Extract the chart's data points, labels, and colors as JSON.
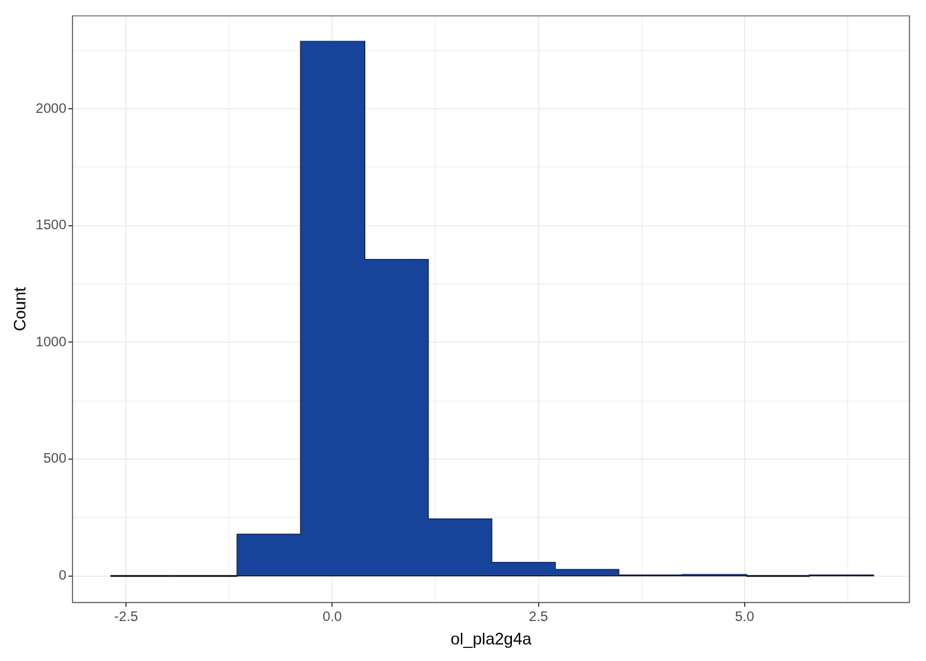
{
  "chart_data": {
    "type": "histogram",
    "xlabel": "ol_pla2g4a",
    "ylabel": "Count",
    "color": "#17439a",
    "bins": [
      -2.69,
      -1.92,
      -1.15,
      -0.38,
      0.39,
      1.16,
      1.93,
      2.7,
      3.47,
      4.25,
      5.02,
      5.79,
      6.56
    ],
    "values": [
      0,
      0,
      177,
      2287,
      1353,
      243,
      56,
      26,
      2,
      5,
      0,
      2
    ],
    "xlim": [
      -3.15,
      7.0
    ],
    "xticks": [
      {
        "value": -2.5,
        "label": "-2.5"
      },
      {
        "value": -1.25,
        "label": null
      },
      {
        "value": 0,
        "label": "0.0"
      },
      {
        "value": 1.25,
        "label": null
      },
      {
        "value": 2.5,
        "label": "2.5"
      },
      {
        "value": 3.75,
        "label": null
      },
      {
        "value": 5,
        "label": "5.0"
      },
      {
        "value": 6.25,
        "label": null
      }
    ],
    "ylim": [
      -114,
      2398
    ],
    "yticks": [
      0,
      {
        "value": 250,
        "label": null
      },
      500,
      {
        "value": 750,
        "label": null
      },
      1000,
      {
        "value": 1250,
        "label": null
      },
      1500,
      {
        "value": 1750,
        "label": null
      },
      2000,
      {
        "value": 2250,
        "label": null
      }
    ],
    "grid": true,
    "legend": false
  }
}
